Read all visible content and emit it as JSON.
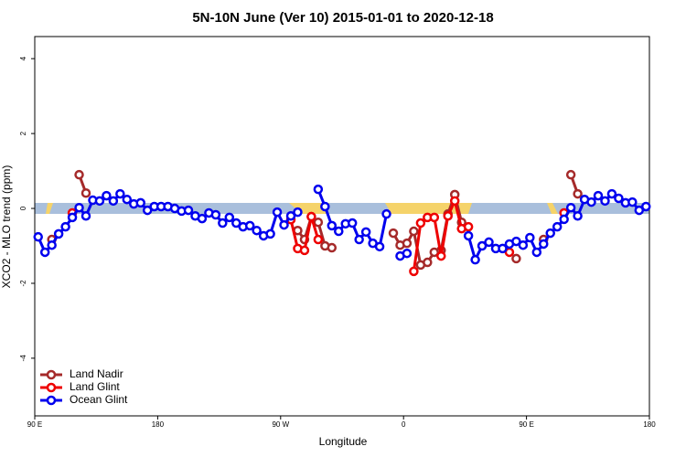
{
  "chart_data": {
    "type": "line",
    "title": "5N-10N June (Ver 10)   2015-01-01 to 2020-12-18",
    "x_label": "Longitude",
    "y_label": "XCO2 - MLO trend (ppm)",
    "x": [
      92.5,
      97.5,
      102.5,
      107.5,
      112.5,
      117.5,
      122.5,
      127.5,
      132.5,
      137.5,
      142.5,
      147.5,
      152.5,
      157.5,
      162.5,
      167.5,
      172.5,
      177.5,
      182.5,
      187.5,
      192.5,
      197.5,
      202.5,
      207.5,
      212.5,
      217.5,
      222.5,
      227.5,
      232.5,
      237.5,
      242.5,
      247.5,
      252.5,
      257.5,
      262.5,
      267.5,
      272.5,
      277.5,
      282.5,
      287.5,
      292.5,
      297.5,
      302.5,
      307.5,
      312.5,
      317.5,
      322.5,
      327.5,
      332.5,
      337.5,
      342.5,
      347.5,
      352.5,
      357.5,
      362.5,
      367.5,
      372.5,
      377.5,
      382.5,
      387.5,
      392.5,
      397.5,
      402.5,
      407.5,
      412.5,
      417.5,
      422.5,
      427.5,
      432.5,
      437.5,
      442.5,
      447.5,
      452.5,
      457.5,
      462.5,
      467.5,
      472.5,
      477.5,
      482.5,
      487.5,
      492.5,
      497.5,
      502.5,
      507.5,
      512.5,
      517.5,
      522.5,
      527.5,
      532.5,
      537.5
    ],
    "series": [
      {
        "name": "Land Nadir",
        "color": "#a52a2a",
        "values": [
          null,
          null,
          -0.83,
          null,
          null,
          null,
          0.9,
          0.41,
          null,
          null,
          null,
          null,
          null,
          null,
          null,
          null,
          null,
          null,
          null,
          null,
          null,
          null,
          null,
          null,
          null,
          null,
          null,
          null,
          null,
          null,
          null,
          null,
          null,
          null,
          null,
          null,
          null,
          null,
          -0.59,
          -0.83,
          -0.22,
          -0.37,
          -1.0,
          -1.05,
          null,
          null,
          null,
          null,
          null,
          null,
          null,
          null,
          -0.66,
          -0.98,
          -0.93,
          -0.61,
          -1.51,
          -1.44,
          -1.17,
          -1.12,
          -0.15,
          0.37,
          -0.37,
          null,
          null,
          null,
          null,
          null,
          null,
          null,
          -1.34,
          null,
          null,
          null,
          -0.83,
          null,
          null,
          null,
          0.9,
          0.39,
          null,
          null,
          null,
          null,
          null,
          null,
          null,
          null,
          null,
          null
        ]
      },
      {
        "name": "Land Glint",
        "color": "#ee0000",
        "values": [
          null,
          null,
          null,
          null,
          null,
          -0.12,
          null,
          null,
          null,
          null,
          null,
          null,
          null,
          null,
          null,
          null,
          null,
          null,
          null,
          null,
          null,
          null,
          null,
          null,
          null,
          null,
          null,
          null,
          null,
          null,
          null,
          null,
          null,
          null,
          null,
          null,
          null,
          -0.3,
          -1.07,
          -1.12,
          -0.22,
          -0.83,
          null,
          null,
          null,
          null,
          null,
          null,
          null,
          null,
          null,
          null,
          null,
          null,
          null,
          -1.68,
          -0.39,
          -0.24,
          -0.24,
          -1.27,
          -0.2,
          0.2,
          -0.54,
          -0.49,
          null,
          null,
          null,
          null,
          null,
          -1.17,
          null,
          null,
          null,
          null,
          null,
          null,
          null,
          -0.12,
          null,
          null,
          null,
          null,
          null,
          null,
          null,
          null,
          null,
          null,
          null,
          null
        ]
      },
      {
        "name": "Ocean Glint",
        "color": "#0000ee",
        "values": [
          -0.76,
          -1.17,
          -0.98,
          -0.68,
          -0.49,
          -0.24,
          0.02,
          -0.2,
          0.22,
          0.2,
          0.34,
          0.2,
          0.39,
          0.24,
          0.12,
          0.15,
          -0.05,
          0.05,
          0.05,
          0.05,
          0,
          -0.07,
          -0.05,
          -0.2,
          -0.27,
          -0.12,
          -0.17,
          -0.39,
          -0.24,
          -0.39,
          -0.49,
          -0.46,
          -0.59,
          -0.73,
          -0.68,
          -0.1,
          -0.44,
          -0.2,
          -0.1,
          null,
          null,
          0.51,
          0.05,
          -0.46,
          -0.61,
          -0.41,
          -0.39,
          -0.83,
          -0.63,
          -0.93,
          -1.02,
          -0.15,
          null,
          -1.27,
          -1.2,
          null,
          null,
          null,
          null,
          null,
          null,
          null,
          null,
          -0.73,
          -1.37,
          -1.0,
          -0.9,
          -1.07,
          -1.07,
          -0.95,
          -0.88,
          -0.98,
          -0.78,
          -1.17,
          -0.95,
          -0.66,
          -0.49,
          -0.29,
          0.02,
          -0.2,
          0.24,
          0.17,
          0.34,
          0.2,
          0.39,
          0.27,
          0.15,
          0.17,
          -0.05,
          0.05
        ]
      }
    ],
    "xlim": [
      90,
      540
    ],
    "xticks": [
      {
        "value": 90,
        "label": "90 E"
      },
      180,
      {
        "value": 270,
        "label": "90 W"
      },
      {
        "value": 360,
        "label": "0"
      },
      {
        "value": 450,
        "label": "90 E"
      },
      {
        "value": 540,
        "label": "180"
      }
    ],
    "ylim": [
      -5.54,
      4.59
    ],
    "yticks": [
      -4,
      -2,
      0,
      2,
      4
    ],
    "grid": false,
    "legend": "bottom-left"
  }
}
